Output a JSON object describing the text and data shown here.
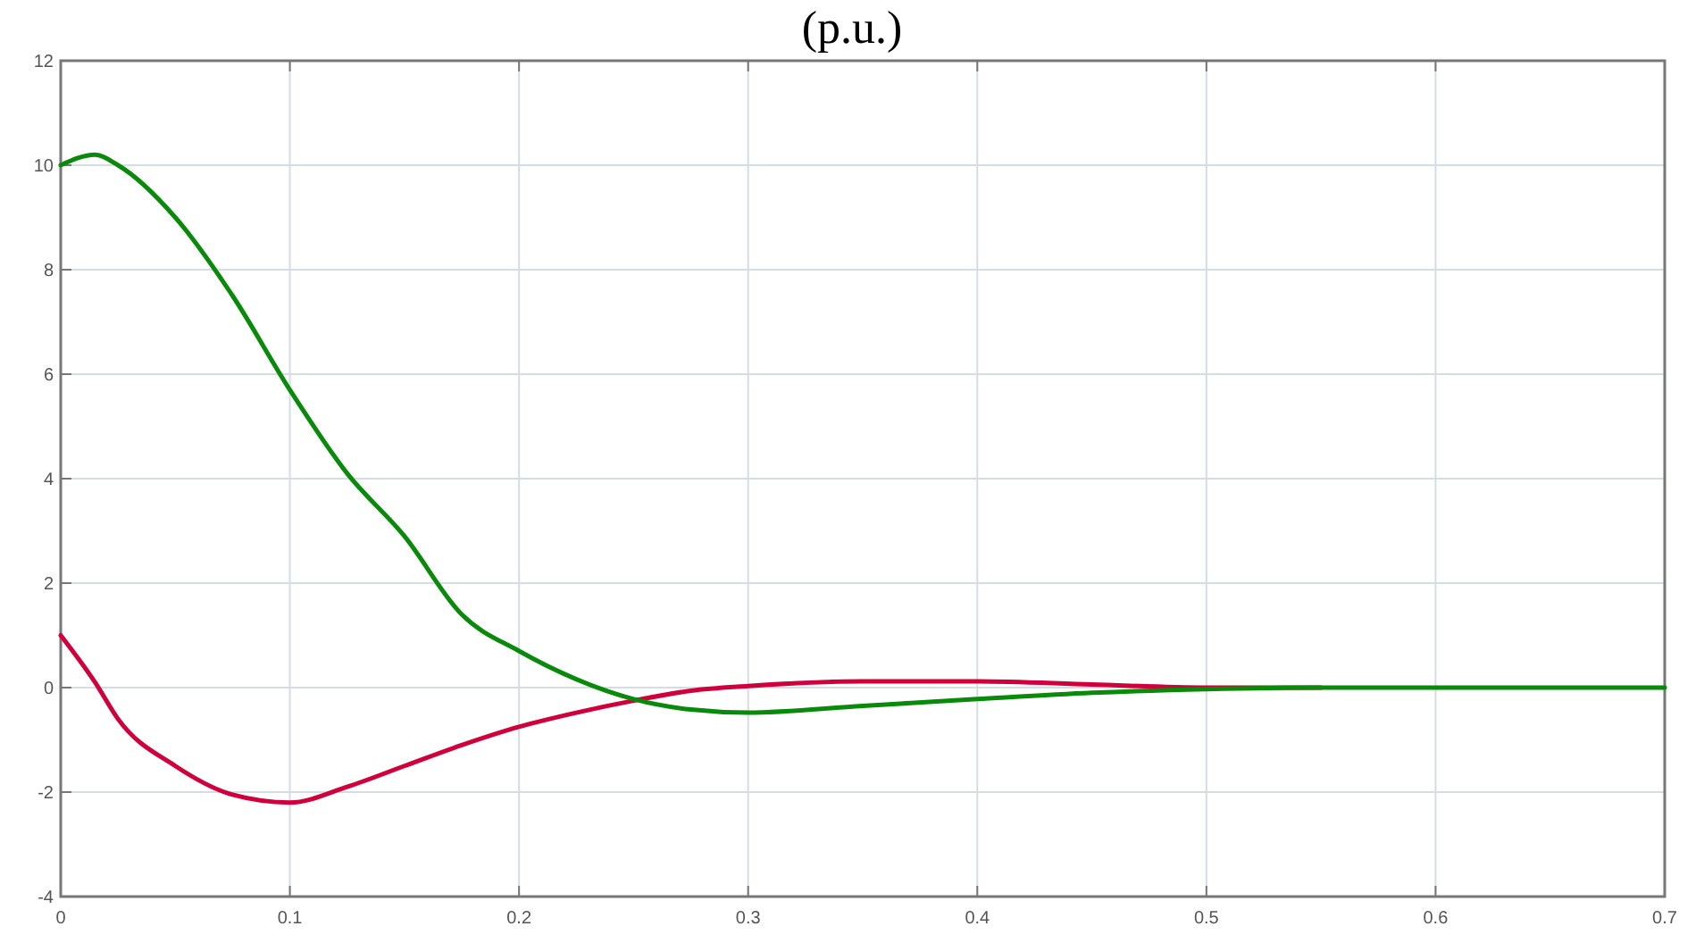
{
  "chart_data": {
    "type": "line",
    "title": "(p.u.)",
    "x": [
      0,
      0.015,
      0.025,
      0.05,
      0.075,
      0.1,
      0.125,
      0.15,
      0.175,
      0.2,
      0.225,
      0.25,
      0.275,
      0.3,
      0.35,
      0.4,
      0.45,
      0.5,
      0.55,
      0.6,
      0.65,
      0.7
    ],
    "series": [
      {
        "color": "#d0003c",
        "values": [
          1,
          0.1,
          -0.6,
          -1.5,
          -2.05,
          -2.2,
          -1.9,
          -1.5,
          -1.1,
          -0.75,
          -0.48,
          -0.25,
          -0.06,
          0.03,
          0.12,
          0.12,
          0.06,
          0,
          0,
          null,
          null,
          null
        ]
      },
      {
        "color": "#0a8a0a",
        "values": [
          10,
          10.2,
          10,
          9,
          7.5,
          5.7,
          4.1,
          2.9,
          1.4,
          0.7,
          0.16,
          -0.22,
          -0.42,
          -0.48,
          -0.35,
          -0.22,
          -0.1,
          -0.03,
          0,
          0,
          0,
          0
        ]
      }
    ],
    "xlim": [
      0,
      0.7
    ],
    "xticks": [
      0,
      0.1,
      0.2,
      0.3,
      0.4,
      0.5,
      0.6,
      0.7
    ],
    "ylim": [
      -4,
      12
    ],
    "yticks": [
      -4,
      -2,
      0,
      2,
      4,
      6,
      8,
      10,
      12
    ],
    "grid": true
  }
}
